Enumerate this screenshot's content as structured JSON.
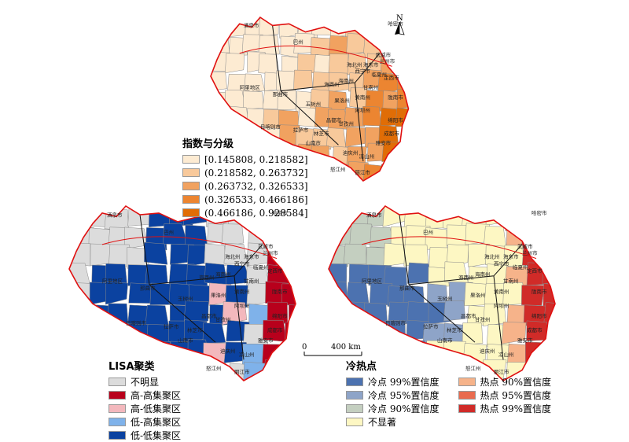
{
  "north_label": "N",
  "scale_bar": {
    "zero": "0",
    "distance": "400 km"
  },
  "index_legend": {
    "title": "指数与分级",
    "classes": [
      {
        "label": "[0.145808, 0.218582]",
        "color": "#fdebd2"
      },
      {
        "label": "(0.218582, 0.263732]",
        "color": "#f8c99b"
      },
      {
        "label": "(0.263732, 0.326533]",
        "color": "#f1a260"
      },
      {
        "label": "(0.326533, 0.466186]",
        "color": "#ec8531"
      },
      {
        "label": "(0.466186, 0.928584]",
        "color": "#e06d06"
      }
    ]
  },
  "lisa_legend": {
    "title": "LISA聚类",
    "classes": [
      {
        "label": "不明显",
        "color": "#dcdcdc"
      },
      {
        "label": "高-高集聚区",
        "color": "#b8001c"
      },
      {
        "label": "高-低集聚区",
        "color": "#f3b8bd"
      },
      {
        "label": "低-高集聚区",
        "color": "#7fb2ea"
      },
      {
        "label": "低-低集聚区",
        "color": "#0b42a0"
      }
    ]
  },
  "hotspot_legend": {
    "title": "冷热点",
    "col1": [
      {
        "label": "冷点 99%置信度",
        "color": "#4c72b0"
      },
      {
        "label": "冷点 95%置信度",
        "color": "#8ea4c8"
      },
      {
        "label": "冷点 90%置信度",
        "color": "#c4cfc0"
      },
      {
        "label": "不显著",
        "color": "#fdf7c3"
      }
    ],
    "col2": [
      {
        "label": "热点 90%置信度",
        "color": "#f6b38a"
      },
      {
        "label": "热点 95%置信度",
        "color": "#e96b4f"
      },
      {
        "label": "热点 99%置信度",
        "color": "#d02b28"
      }
    ]
  },
  "place_labels": [
    "酒泉市",
    "海西州",
    "巴州",
    "哈密市",
    "武威市",
    "海北州",
    "临夏州",
    "甘南州",
    "陇南市",
    "阿坝州",
    "绵阳市",
    "成都市",
    "雅安市",
    "凉山州",
    "丽江市",
    "怒江州",
    "迪庆州",
    "阿里地区",
    "那曲市",
    "玉树州",
    "日喀则市",
    "拉萨市",
    "山南市",
    "林芝市",
    "昌都市",
    "甘孜州",
    "果洛州",
    "黄南州",
    "海南州",
    "海东市",
    "西宁市",
    "兰州市",
    "定西市"
  ]
}
